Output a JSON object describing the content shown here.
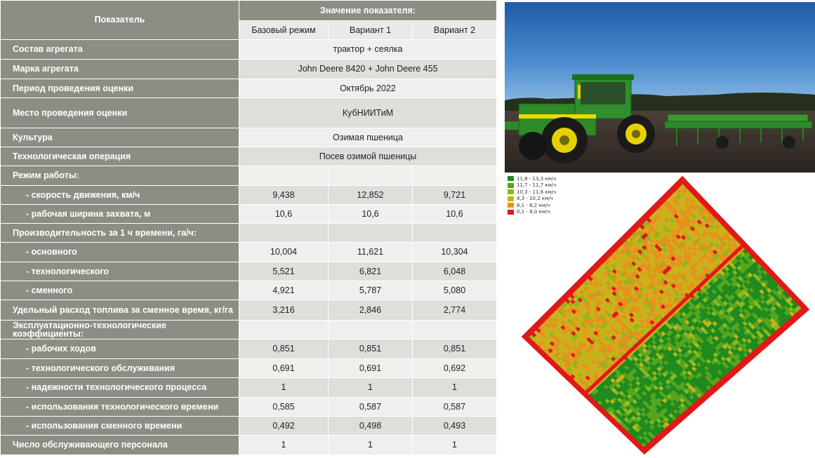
{
  "table": {
    "header": {
      "indicator": "Показатель",
      "value_group": "Значение показателя:",
      "columns": [
        "Базовый режим",
        "Вариант 1",
        "Вариант 2"
      ]
    },
    "rows": [
      {
        "label": "Состав агрегата",
        "merged": "трактор + сеялка"
      },
      {
        "label": "Марка агрегата",
        "merged": "John Deere 8420 + John Deere 455"
      },
      {
        "label": "Период проведения оценки",
        "merged": "Октябрь 2022"
      },
      {
        "label": "Место проведения оценки",
        "merged": "КубНИИТиМ"
      },
      {
        "label": "Культура",
        "merged": "Озимая пшеница"
      },
      {
        "label": "Технологическая операция",
        "merged": "Посев озимой пшеницы"
      },
      {
        "label": "Режим работы:",
        "values": [
          "",
          "",
          ""
        ]
      },
      {
        "label": "- скорость движения, км/ч",
        "values": [
          "9,438",
          "12,852",
          "9,721"
        ]
      },
      {
        "label": "- рабочая ширина захвата, м",
        "values": [
          "10,6",
          "10,6",
          "10,6"
        ]
      },
      {
        "label": "Производительность за 1 ч времени, га/ч:",
        "values": [
          "",
          "",
          ""
        ]
      },
      {
        "label": "- основного",
        "values": [
          "10,004",
          "11,621",
          "10,304"
        ]
      },
      {
        "label": "- технологического",
        "values": [
          "5,521",
          "6,821",
          "6,048"
        ]
      },
      {
        "label": "- сменного",
        "values": [
          "4,921",
          "5,787",
          "5,080"
        ]
      },
      {
        "label": "Удельный расход топлива за сменное время, кг/га",
        "values": [
          "3,216",
          "2,846",
          "2,774"
        ]
      },
      {
        "label": "Эксплуатационно-технологические коэффициенты:",
        "values": [
          "",
          "",
          ""
        ]
      },
      {
        "label": "- рабочих ходов",
        "values": [
          "0,851",
          "0,851",
          "0,851"
        ]
      },
      {
        "label": "- технологического обслуживания",
        "values": [
          "0,691",
          "0,691",
          "0,692"
        ]
      },
      {
        "label": "- надежности технологического процесса",
        "values": [
          "1",
          "1",
          "1"
        ]
      },
      {
        "label": "- использования технологического времени",
        "values": [
          "0,585",
          "0,587",
          "0,587"
        ]
      },
      {
        "label": "- использования сменного времени",
        "values": [
          "0,492",
          "0,498",
          "0,493"
        ]
      },
      {
        "label": "Число обслуживающего персонала",
        "values": [
          "1",
          "1",
          "1"
        ]
      }
    ]
  },
  "legend": {
    "items": [
      {
        "label": "11,8 - 13,3 км/ч",
        "color": "#1e8a1e"
      },
      {
        "label": "11,7 - 11,7 км/ч",
        "color": "#56a51c"
      },
      {
        "label": "10,3 - 11,6 км/ч",
        "color": "#8cb81c"
      },
      {
        "label": "8,3 - 10,2 км/ч",
        "color": "#c8b21a"
      },
      {
        "label": "8,1 - 8,2 км/ч",
        "color": "#e8901c"
      },
      {
        "label": "0,1 - 8,0 км/ч",
        "color": "#e01818"
      }
    ]
  }
}
